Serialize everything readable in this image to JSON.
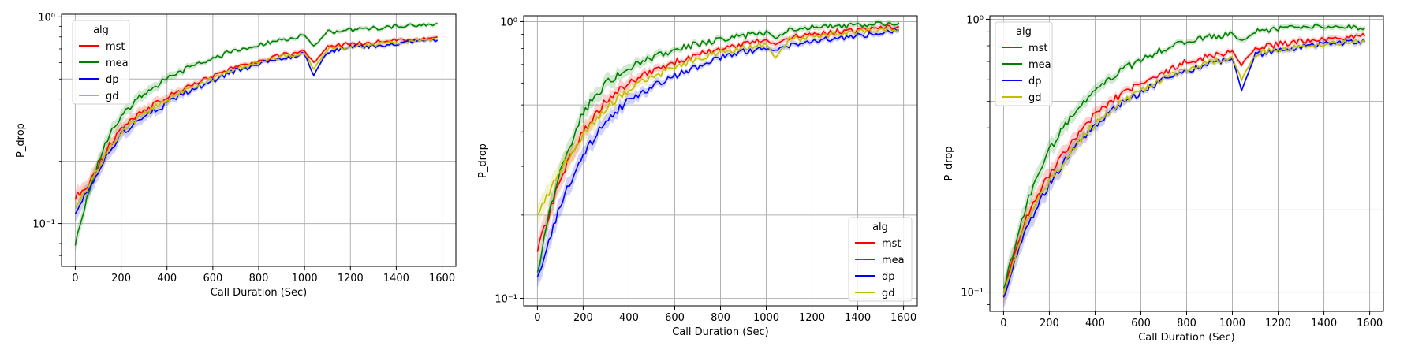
{
  "colors": {
    "mst": "#ff0000",
    "mea": "#008000",
    "dp": "#0000ff",
    "gd": "#bfbf00",
    "grid": "#b0b0b0",
    "axis": "#000000",
    "background": "#ffffff"
  },
  "chart_data": [
    {
      "type": "line",
      "title": "",
      "xlabel": "Call Duration (Sec)",
      "ylabel": "P_drop",
      "yscale": "log",
      "xlim": [
        -60,
        1660
      ],
      "ylim": [
        0.062,
        1.03
      ],
      "xticks": [
        0,
        200,
        400,
        600,
        800,
        1000,
        1200,
        1400,
        1600
      ],
      "xtick_labels": [
        "0",
        "200",
        "400",
        "600",
        "800",
        "1000",
        "1200",
        "1400",
        "1600"
      ],
      "yticks_major": [
        0.1,
        1
      ],
      "ytick_labels": [
        "10⁻¹",
        "10⁰"
      ],
      "yticks_minor": [
        0.07,
        0.08,
        0.09,
        0.2,
        0.3,
        0.4,
        0.5,
        0.6,
        0.7,
        0.8,
        0.9
      ],
      "ygrid": [
        0.1,
        0.2,
        0.5,
        1
      ],
      "grid": true,
      "legend": {
        "title": "alg",
        "position": "top-left",
        "entries": [
          "mst",
          "mea",
          "dp",
          "gd"
        ]
      },
      "x": [
        0,
        50,
        100,
        150,
        200,
        300,
        400,
        500,
        600,
        700,
        800,
        900,
        1000,
        1040,
        1100,
        1200,
        1300,
        1400,
        1500,
        1580
      ],
      "series": [
        {
          "name": "mst",
          "values": [
            0.135,
            0.15,
            0.19,
            0.24,
            0.29,
            0.35,
            0.41,
            0.46,
            0.52,
            0.57,
            0.61,
            0.65,
            0.68,
            0.6,
            0.71,
            0.74,
            0.75,
            0.77,
            0.78,
            0.8
          ]
        },
        {
          "name": "mea",
          "values": [
            0.08,
            0.13,
            0.2,
            0.27,
            0.33,
            0.43,
            0.5,
            0.57,
            0.63,
            0.69,
            0.73,
            0.77,
            0.81,
            0.72,
            0.84,
            0.86,
            0.88,
            0.9,
            0.91,
            0.93
          ]
        },
        {
          "name": "dp",
          "values": [
            0.115,
            0.14,
            0.18,
            0.22,
            0.27,
            0.33,
            0.38,
            0.44,
            0.49,
            0.55,
            0.59,
            0.63,
            0.66,
            0.52,
            0.68,
            0.71,
            0.72,
            0.74,
            0.76,
            0.77
          ]
        },
        {
          "name": "gd",
          "values": [
            0.12,
            0.145,
            0.185,
            0.23,
            0.28,
            0.34,
            0.4,
            0.45,
            0.5,
            0.56,
            0.6,
            0.64,
            0.67,
            0.56,
            0.7,
            0.72,
            0.73,
            0.75,
            0.77,
            0.78
          ]
        }
      ]
    },
    {
      "type": "line",
      "title": "",
      "xlabel": "Call Duration (Sec)",
      "ylabel": "P_drop",
      "yscale": "log",
      "xlim": [
        -60,
        1660
      ],
      "ylim": [
        0.094,
        1.05
      ],
      "xticks": [
        0,
        200,
        400,
        600,
        800,
        1000,
        1200,
        1400,
        1600
      ],
      "xtick_labels": [
        "0",
        "200",
        "400",
        "600",
        "800",
        "1000",
        "1200",
        "1400",
        "1600"
      ],
      "yticks_major": [
        0.1,
        1
      ],
      "ytick_labels": [
        "10⁻¹",
        "10⁰"
      ],
      "yticks_minor": [
        0.2,
        0.3,
        0.4,
        0.5,
        0.6,
        0.7,
        0.8,
        0.9
      ],
      "ygrid": [
        0.1,
        0.2,
        0.5,
        1
      ],
      "grid": true,
      "legend": {
        "title": "alg",
        "position": "bottom-right",
        "entries": [
          "mst",
          "mea",
          "dp",
          "gd"
        ]
      },
      "x": [
        0,
        50,
        100,
        150,
        200,
        300,
        400,
        500,
        600,
        700,
        800,
        900,
        1000,
        1040,
        1100,
        1200,
        1300,
        1400,
        1500,
        1580
      ],
      "series": [
        {
          "name": "mst",
          "values": [
            0.15,
            0.2,
            0.27,
            0.33,
            0.4,
            0.52,
            0.6,
            0.66,
            0.71,
            0.76,
            0.8,
            0.83,
            0.86,
            0.82,
            0.88,
            0.9,
            0.92,
            0.93,
            0.95,
            0.96
          ]
        },
        {
          "name": "mea",
          "values": [
            0.12,
            0.2,
            0.29,
            0.37,
            0.47,
            0.6,
            0.68,
            0.74,
            0.79,
            0.83,
            0.86,
            0.89,
            0.92,
            0.87,
            0.93,
            0.95,
            0.96,
            0.97,
            0.98,
            0.99
          ]
        },
        {
          "name": "dp",
          "values": [
            0.12,
            0.16,
            0.22,
            0.27,
            0.33,
            0.44,
            0.52,
            0.58,
            0.64,
            0.69,
            0.74,
            0.78,
            0.8,
            0.79,
            0.82,
            0.85,
            0.87,
            0.89,
            0.91,
            0.93
          ]
        },
        {
          "name": "gd",
          "values": [
            0.2,
            0.24,
            0.29,
            0.34,
            0.39,
            0.49,
            0.57,
            0.63,
            0.68,
            0.73,
            0.77,
            0.8,
            0.83,
            0.74,
            0.86,
            0.88,
            0.9,
            0.92,
            0.93,
            0.94
          ]
        }
      ]
    },
    {
      "type": "line",
      "title": "",
      "xlabel": "Call Duration (Sec)",
      "ylabel": "P_drop",
      "yscale": "log",
      "xlim": [
        -60,
        1660
      ],
      "ylim": [
        0.085,
        1.03
      ],
      "xticks": [
        0,
        200,
        400,
        600,
        800,
        1000,
        1200,
        1400,
        1600
      ],
      "xtick_labels": [
        "0",
        "200",
        "400",
        "600",
        "800",
        "1000",
        "1200",
        "1400",
        "1600"
      ],
      "yticks_major": [
        0.1,
        1
      ],
      "ytick_labels": [
        "10⁻¹",
        "10⁰"
      ],
      "yticks_minor": [
        0.09,
        0.2,
        0.3,
        0.4,
        0.5,
        0.6,
        0.7,
        0.8,
        0.9
      ],
      "ygrid": [
        0.1,
        0.2,
        0.5,
        1
      ],
      "grid": true,
      "legend": {
        "title": "alg",
        "position": "top-left",
        "entries": [
          "mst",
          "mea",
          "dp",
          "gd"
        ]
      },
      "x": [
        0,
        50,
        100,
        150,
        200,
        300,
        400,
        500,
        600,
        700,
        800,
        900,
        1000,
        1040,
        1100,
        1200,
        1300,
        1400,
        1500,
        1580
      ],
      "series": [
        {
          "name": "mst",
          "values": [
            0.1,
            0.14,
            0.19,
            0.23,
            0.27,
            0.36,
            0.45,
            0.52,
            0.58,
            0.64,
            0.7,
            0.73,
            0.76,
            0.68,
            0.78,
            0.81,
            0.83,
            0.85,
            0.86,
            0.87
          ]
        },
        {
          "name": "mea",
          "values": [
            0.1,
            0.15,
            0.21,
            0.27,
            0.33,
            0.45,
            0.55,
            0.64,
            0.71,
            0.78,
            0.83,
            0.86,
            0.88,
            0.83,
            0.9,
            0.92,
            0.93,
            0.94,
            0.94,
            0.93
          ]
        },
        {
          "name": "dp",
          "values": [
            0.095,
            0.13,
            0.17,
            0.21,
            0.25,
            0.33,
            0.41,
            0.48,
            0.54,
            0.6,
            0.65,
            0.69,
            0.72,
            0.55,
            0.74,
            0.77,
            0.79,
            0.81,
            0.82,
            0.83
          ]
        },
        {
          "name": "gd",
          "values": [
            0.1,
            0.135,
            0.18,
            0.215,
            0.255,
            0.335,
            0.415,
            0.485,
            0.545,
            0.605,
            0.655,
            0.695,
            0.725,
            0.6,
            0.745,
            0.775,
            0.795,
            0.815,
            0.825,
            0.835
          ]
        }
      ]
    }
  ]
}
